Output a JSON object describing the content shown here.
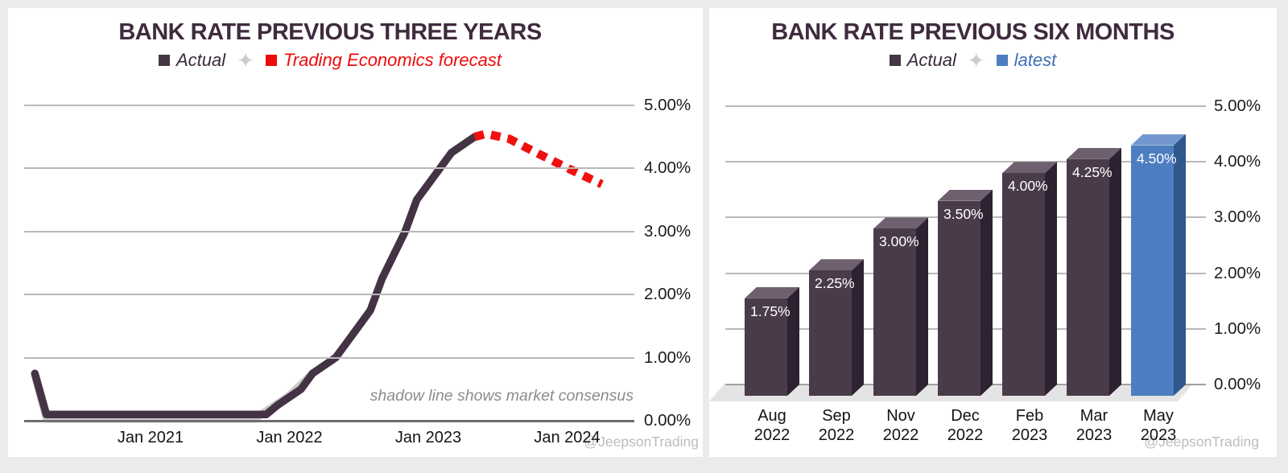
{
  "left_chart": {
    "title": "BANK RATE PREVIOUS THREE YEARS",
    "legend": {
      "separator_glyph": "✦",
      "items": [
        {
          "label": "Actual",
          "marker_color": "#463646",
          "text_color": "#3b2a3a"
        },
        {
          "label": "Trading Economics forecast",
          "marker_color": "#ef0a0a",
          "text_color": "#ef0a0a"
        }
      ]
    },
    "annotation": "shadow line shows market consensus",
    "watermark": "@JeepsonTrading",
    "chart_data": {
      "type": "line",
      "title": "BANK RATE PREVIOUS THREE YEARS",
      "ylim": [
        0,
        5
      ],
      "grid": true,
      "legend_position": "top",
      "y_ticks": [
        "0.00%",
        "1.00%",
        "2.00%",
        "3.00%",
        "4.00%",
        "5.00%"
      ],
      "x_ticks": [
        "Jan 2021",
        "Jan 2022",
        "Jan 2023",
        "Jan 2024"
      ],
      "series": [
        {
          "name": "market consensus (shadow)",
          "color": "#cacaca",
          "style": "solid",
          "points": [
            [
              "Mar 2020",
              0.72
            ],
            [
              "Apr 2020",
              0.03
            ],
            [
              "Oct 2021",
              0.03
            ],
            [
              "Jan 2022",
              0.4
            ],
            [
              "Mar 2022",
              0.75
            ]
          ]
        },
        {
          "name": "Actual",
          "color": "#443345",
          "style": "solid",
          "points": [
            [
              "Mar 2020",
              0.75
            ],
            [
              "Apr 2020",
              0.1
            ],
            [
              "Nov 2021",
              0.1
            ],
            [
              "Dec 2021",
              0.25
            ],
            [
              "Feb 2022",
              0.5
            ],
            [
              "Mar 2022",
              0.75
            ],
            [
              "May 2022",
              1.0
            ],
            [
              "Jun 2022",
              1.25
            ],
            [
              "Aug 2022",
              1.75
            ],
            [
              "Sep 2022",
              2.25
            ],
            [
              "Nov 2022",
              3.0
            ],
            [
              "Dec 2022",
              3.5
            ],
            [
              "Feb 2023",
              4.0
            ],
            [
              "Mar 2023",
              4.25
            ],
            [
              "May 2023",
              4.5
            ]
          ]
        },
        {
          "name": "Trading Economics forecast",
          "color": "#f01010",
          "style": "dashed",
          "points": [
            [
              "May 2023",
              4.5
            ],
            [
              "Jun 2023",
              4.55
            ],
            [
              "Aug 2023",
              4.47
            ],
            [
              "Oct 2023",
              4.28
            ],
            [
              "Dec 2023",
              4.1
            ],
            [
              "Feb 2024",
              3.92
            ],
            [
              "Apr 2024",
              3.75
            ]
          ]
        }
      ]
    }
  },
  "right_chart": {
    "title": "BANK RATE PREVIOUS SIX MONTHS",
    "legend": {
      "separator_glyph": "✦",
      "items": [
        {
          "label": "Actual",
          "marker_color": "#463646",
          "text_color": "#3b2a3a"
        },
        {
          "label": "latest",
          "marker_color": "#4d7ec1",
          "text_color": "#3e6fb7"
        }
      ]
    },
    "watermark": "@JeepsonTrading",
    "bar_colors": {
      "actual": {
        "front": "#4a3b4b",
        "top": "#6f6070",
        "side": "#2d2231"
      },
      "latest": {
        "front": "#4d7ec1",
        "top": "#7397ce",
        "side": "#31588c"
      }
    },
    "chart_data": {
      "type": "bar",
      "title": "BANK RATE PREVIOUS SIX MONTHS",
      "ylim": [
        0,
        5
      ],
      "grid": true,
      "legend_position": "top",
      "y_ticks": [
        "0.00%",
        "1.00%",
        "2.00%",
        "3.00%",
        "4.00%",
        "5.00%"
      ],
      "categories": [
        "Aug 2022",
        "Sep 2022",
        "Nov 2022",
        "Dec 2022",
        "Feb 2023",
        "Mar 2023",
        "May 2023"
      ],
      "values": [
        1.75,
        2.25,
        3.0,
        3.5,
        4.0,
        4.25,
        4.5
      ],
      "value_labels": [
        "1.75%",
        "2.25%",
        "3.00%",
        "3.50%",
        "4.00%",
        "4.25%",
        "4.50%"
      ],
      "series_membership": [
        "Actual",
        "Actual",
        "Actual",
        "Actual",
        "Actual",
        "Actual",
        "latest"
      ]
    }
  }
}
